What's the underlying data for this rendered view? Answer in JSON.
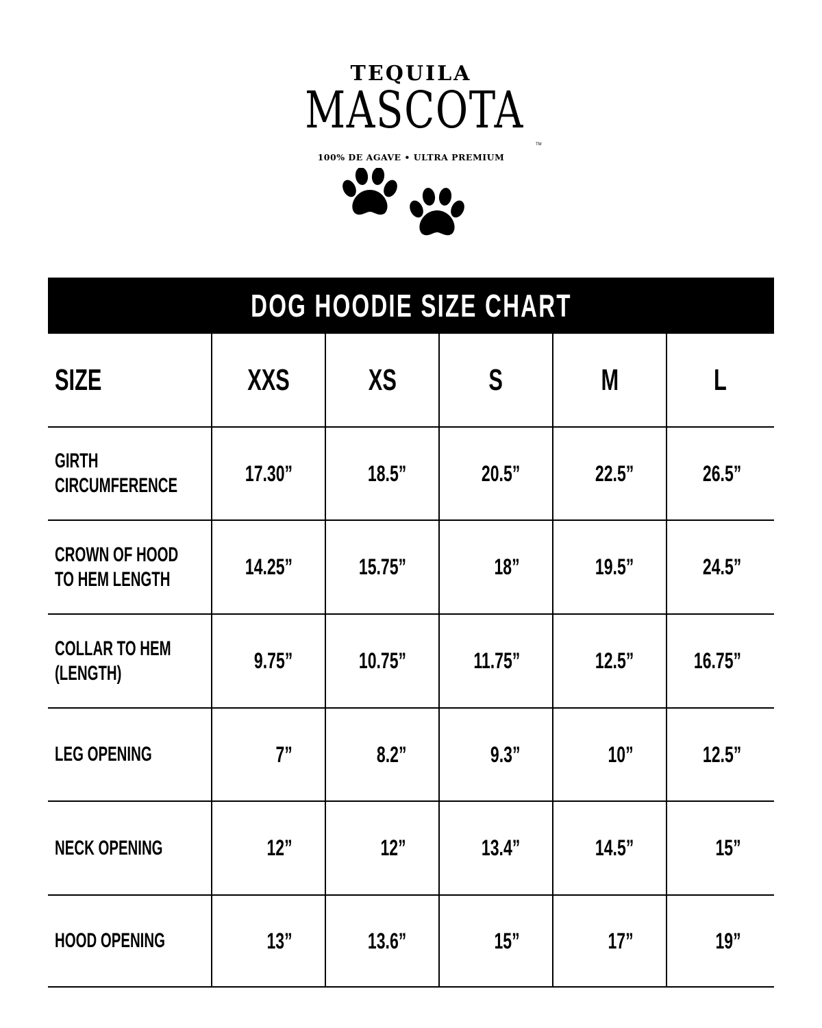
{
  "logo": {
    "top": "TEQUILA",
    "main": "MASCOTA",
    "subtitle": "100% DE AGAVE • ULTRA PREMIUM",
    "trademark": "TM",
    "icon": "paw-print-icon"
  },
  "title": "DOG HOODIE SIZE CHART",
  "table": {
    "header": "SIZE",
    "sizes": [
      "XXS",
      "XS",
      "S",
      "M",
      "L"
    ],
    "rows": [
      {
        "label_lines": [
          "GIRTH",
          "CIRCUMFERENCE"
        ],
        "values": [
          "17.30”",
          "18.5”",
          "20.5”",
          "22.5”",
          "26.5”"
        ]
      },
      {
        "label_lines": [
          "CROWN OF HOOD",
          "TO HEM LENGTH"
        ],
        "values": [
          "14.25”",
          "15.75”",
          "18”",
          "19.5”",
          "24.5”"
        ]
      },
      {
        "label_lines": [
          "COLLAR TO HEM",
          "(LENGTH)"
        ],
        "values": [
          "9.75”",
          "10.75”",
          "11.75”",
          "12.5”",
          "16.75”"
        ]
      },
      {
        "label_lines": [
          "LEG OPENING"
        ],
        "values": [
          "7”",
          "8.2”",
          "9.3”",
          "10”",
          "12.5”"
        ]
      },
      {
        "label_lines": [
          "NECK OPENING"
        ],
        "values": [
          "12”",
          "12”",
          "13.4”",
          "14.5”",
          "15”"
        ]
      },
      {
        "label_lines": [
          "HOOD OPENING"
        ],
        "values": [
          "13”",
          "13.6”",
          "15”",
          "17”",
          "19”"
        ]
      }
    ]
  }
}
